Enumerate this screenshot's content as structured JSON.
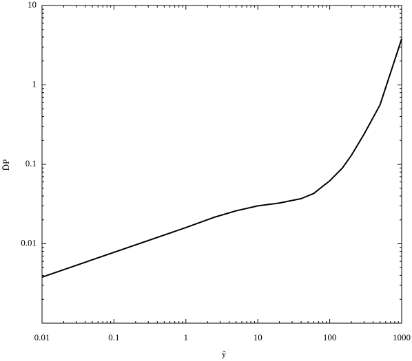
{
  "chart_data": {
    "type": "line",
    "xlabel": "ỹ",
    "ylabel": "D̄P",
    "x": [
      0.01,
      1,
      2.5,
      5,
      10,
      20,
      40,
      60,
      80,
      100,
      150,
      200,
      300,
      500,
      1000
    ],
    "values": [
      0.0038,
      0.016,
      0.0216,
      0.026,
      0.03,
      0.0326,
      0.037,
      0.043,
      0.053,
      0.062,
      0.09,
      0.13,
      0.24,
      0.56,
      3.8
    ],
    "color": "#000000",
    "xscale": "log",
    "yscale": "log",
    "xlim": [
      0.01,
      1000
    ],
    "ylim": [
      0.001,
      10
    ],
    "xticks": [
      0.01,
      0.1,
      1,
      10,
      100,
      1000
    ],
    "yticks": [
      0.01,
      0.1,
      1,
      10
    ]
  }
}
